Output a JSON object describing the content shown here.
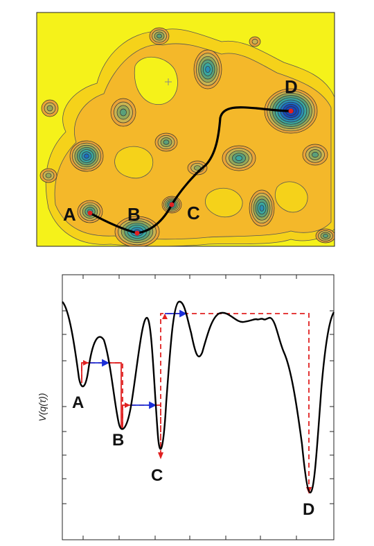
{
  "contour_map": {
    "point_labels": [
      "A",
      "B",
      "C",
      "D"
    ],
    "colors": {
      "background": "#f5f21a",
      "levels": [
        "#f5d21a",
        "#f4b82a",
        "#e9a338",
        "#c9b350",
        "#93a85a",
        "#5aa07a",
        "#3aa7a0",
        "#2a8fb4",
        "#1d6cc0",
        "#1848b8"
      ],
      "path": "#000000",
      "points": "#e02020"
    }
  },
  "energy_profile": {
    "ylabel": "V(q(τ))",
    "point_labels": [
      "A",
      "B",
      "C",
      "D"
    ],
    "colors": {
      "curve": "#000000",
      "dashed": "#e02020",
      "arrows_red": "#e02020",
      "arrows_blue": "#1a2ed8"
    }
  }
}
